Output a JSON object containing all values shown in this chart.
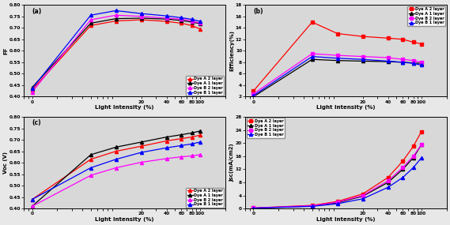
{
  "light_intensity": [
    1,
    5,
    10,
    20,
    40,
    60,
    80,
    100
  ],
  "panel_a": {
    "label": "(a)",
    "ylabel": "FF",
    "ylim": [
      0.4,
      0.8
    ],
    "yticks": [
      0.4,
      0.45,
      0.5,
      0.55,
      0.6,
      0.65,
      0.7,
      0.75,
      0.8
    ],
    "xtick_labels": [
      "0",
      "20",
      "40",
      "60",
      "80",
      "100"
    ],
    "series": {
      "Dye A 2 layer": {
        "color": "red",
        "marker": "^",
        "values": [
          0.43,
          0.71,
          0.73,
          0.735,
          0.728,
          0.72,
          0.71,
          0.695
        ]
      },
      "Dye A 1 layer": {
        "color": "black",
        "marker": "^",
        "values": [
          0.44,
          0.72,
          0.74,
          0.742,
          0.738,
          0.732,
          0.725,
          0.718
        ]
      },
      "Dye B 2 layer": {
        "color": "magenta",
        "marker": "^",
        "values": [
          0.42,
          0.735,
          0.755,
          0.75,
          0.742,
          0.738,
          0.73,
          0.72
        ]
      },
      "Dye B 1 layer": {
        "color": "blue",
        "marker": "^",
        "values": [
          0.435,
          0.755,
          0.775,
          0.762,
          0.752,
          0.744,
          0.737,
          0.728
        ]
      }
    }
  },
  "panel_b": {
    "label": "(b)",
    "ylabel": "Efficiency(%)",
    "ylim": [
      2,
      18
    ],
    "yticks": [
      2,
      4,
      6,
      8,
      10,
      12,
      14,
      16,
      18
    ],
    "series": {
      "Dye A 2 layer": {
        "color": "red",
        "marker": "s",
        "values": [
          3.0,
          15.0,
          13.0,
          12.5,
          12.2,
          12.0,
          11.5,
          11.2
        ]
      },
      "Dye A 1 layer": {
        "color": "black",
        "marker": "^",
        "values": [
          2.0,
          8.5,
          8.3,
          8.2,
          8.1,
          8.0,
          7.9,
          7.8
        ]
      },
      "Dye B 2 layer": {
        "color": "magenta",
        "marker": "s",
        "values": [
          2.5,
          9.5,
          9.2,
          9.0,
          8.8,
          8.5,
          8.3,
          8.0
        ]
      },
      "Dye B 1 layer": {
        "color": "blue",
        "marker": "^",
        "values": [
          2.2,
          9.0,
          8.7,
          8.5,
          8.2,
          8.0,
          7.8,
          7.5
        ]
      }
    }
  },
  "panel_c": {
    "label": "(c)",
    "ylabel": "Voc (V)",
    "ylim": [
      0.4,
      0.8
    ],
    "yticks": [
      0.4,
      0.45,
      0.5,
      0.55,
      0.6,
      0.65,
      0.7,
      0.75,
      0.8
    ],
    "series": {
      "Dye A 2 layer": {
        "color": "red",
        "marker": "^",
        "values": [
          0.44,
          0.615,
          0.65,
          0.672,
          0.695,
          0.705,
          0.712,
          0.72
        ]
      },
      "Dye A 1 layer": {
        "color": "black",
        "marker": "^",
        "values": [
          0.41,
          0.635,
          0.668,
          0.69,
          0.712,
          0.722,
          0.73,
          0.738
        ]
      },
      "Dye B 2 layer": {
        "color": "magenta",
        "marker": "^",
        "values": [
          0.41,
          0.545,
          0.578,
          0.602,
          0.618,
          0.626,
          0.63,
          0.635
        ]
      },
      "Dye B 1 layer": {
        "color": "blue",
        "marker": "^",
        "values": [
          0.44,
          0.578,
          0.615,
          0.645,
          0.665,
          0.675,
          0.682,
          0.69
        ]
      }
    }
  },
  "panel_d": {
    "label": "(d)",
    "ylabel": "Jsc(mA/cm2)",
    "ylim": [
      0,
      28
    ],
    "yticks": [
      0,
      4,
      8,
      12,
      16,
      20,
      24,
      28
    ],
    "series": {
      "Dye A 2 layer": {
        "color": "red",
        "marker": "s",
        "values": [
          0.2,
          1.0,
          2.2,
          4.5,
          9.5,
          14.5,
          19.0,
          23.5
        ]
      },
      "Dye A 1 layer": {
        "color": "black",
        "marker": "^",
        "values": [
          0.15,
          0.8,
          1.8,
          3.8,
          8.0,
          12.0,
          15.5,
          19.5
        ]
      },
      "Dye B 2 layer": {
        "color": "magenta",
        "marker": "s",
        "values": [
          0.2,
          0.9,
          2.0,
          4.0,
          8.5,
          12.5,
          16.0,
          19.5
        ]
      },
      "Dye B 1 layer": {
        "color": "blue",
        "marker": "^",
        "values": [
          0.15,
          0.7,
          1.5,
          3.0,
          6.5,
          9.5,
          12.5,
          15.5
        ]
      }
    }
  },
  "xlabel": "Light Intensity (%)",
  "markersize": 3,
  "linewidth": 0.9
}
